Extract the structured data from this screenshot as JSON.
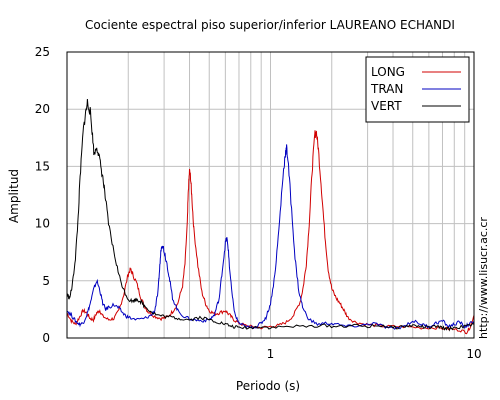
{
  "chart_data": {
    "type": "line",
    "title": "Cociente espectral piso superior/inferior LAUREANO ECHANDI",
    "xlabel": "Periodo (s)",
    "ylabel": "Amplitud",
    "x_scale": "log",
    "xlim": [
      0.1,
      10
    ],
    "ylim": [
      0,
      25
    ],
    "x_ticks": [
      {
        "value": 1,
        "label": "1"
      },
      {
        "value": 10,
        "label": "10"
      }
    ],
    "y_ticks": [
      0,
      5,
      10,
      15,
      20,
      25
    ],
    "grid": true,
    "legend_position": "top-right",
    "side_text": "http://www.lisucr.ac.cr",
    "series": [
      {
        "name": "LONG",
        "color": "#d00000",
        "points": [
          [
            0.1,
            2.2
          ],
          [
            0.105,
            1.5
          ],
          [
            0.11,
            1.2
          ],
          [
            0.115,
            1.8
          ],
          [
            0.12,
            2.4
          ],
          [
            0.125,
            2.2
          ],
          [
            0.13,
            1.7
          ],
          [
            0.135,
            1.6
          ],
          [
            0.14,
            2.2
          ],
          [
            0.145,
            2.4
          ],
          [
            0.15,
            1.9
          ],
          [
            0.16,
            1.6
          ],
          [
            0.17,
            1.7
          ],
          [
            0.18,
            2.4
          ],
          [
            0.19,
            3.8
          ],
          [
            0.2,
            5.6
          ],
          [
            0.205,
            6.0
          ],
          [
            0.21,
            5.6
          ],
          [
            0.22,
            4.8
          ],
          [
            0.23,
            3.6
          ],
          [
            0.24,
            2.8
          ],
          [
            0.25,
            2.3
          ],
          [
            0.27,
            1.9
          ],
          [
            0.29,
            1.7
          ],
          [
            0.31,
            1.8
          ],
          [
            0.33,
            2.3
          ],
          [
            0.35,
            3.0
          ],
          [
            0.37,
            4.6
          ],
          [
            0.38,
            6.5
          ],
          [
            0.39,
            10.0
          ],
          [
            0.395,
            13.0
          ],
          [
            0.4,
            14.6
          ],
          [
            0.405,
            14.0
          ],
          [
            0.41,
            12.5
          ],
          [
            0.42,
            9.5
          ],
          [
            0.44,
            6.3
          ],
          [
            0.46,
            4.0
          ],
          [
            0.48,
            3.0
          ],
          [
            0.5,
            2.4
          ],
          [
            0.53,
            2.1
          ],
          [
            0.56,
            2.2
          ],
          [
            0.6,
            2.4
          ],
          [
            0.63,
            2.0
          ],
          [
            0.66,
            1.6
          ],
          [
            0.7,
            1.3
          ],
          [
            0.75,
            1.1
          ],
          [
            0.8,
            1.0
          ],
          [
            0.9,
            0.9
          ],
          [
            1.0,
            1.0
          ],
          [
            1.1,
            1.1
          ],
          [
            1.2,
            1.4
          ],
          [
            1.3,
            2.0
          ],
          [
            1.4,
            3.2
          ],
          [
            1.45,
            4.5
          ],
          [
            1.5,
            6.5
          ],
          [
            1.55,
            10.0
          ],
          [
            1.6,
            14.5
          ],
          [
            1.65,
            17.8
          ],
          [
            1.68,
            18.0
          ],
          [
            1.72,
            16.5
          ],
          [
            1.78,
            13.0
          ],
          [
            1.85,
            9.0
          ],
          [
            1.92,
            6.0
          ],
          [
            2.0,
            4.3
          ],
          [
            2.1,
            3.5
          ],
          [
            2.2,
            3.0
          ],
          [
            2.3,
            2.4
          ],
          [
            2.4,
            1.8
          ],
          [
            2.6,
            1.4
          ],
          [
            2.9,
            1.2
          ],
          [
            3.3,
            1.1
          ],
          [
            3.8,
            1.0
          ],
          [
            4.5,
            1.0
          ],
          [
            5.5,
            0.9
          ],
          [
            6.5,
            0.9
          ],
          [
            7.5,
            0.8
          ],
          [
            8.5,
            0.7
          ],
          [
            9.2,
            0.5
          ],
          [
            9.6,
            1.0
          ],
          [
            10,
            2.0
          ]
        ]
      },
      {
        "name": "TRAN",
        "color": "#0000c0",
        "points": [
          [
            0.1,
            2.4
          ],
          [
            0.105,
            2.0
          ],
          [
            0.11,
            1.5
          ],
          [
            0.115,
            1.2
          ],
          [
            0.12,
            1.3
          ],
          [
            0.125,
            2.0
          ],
          [
            0.13,
            3.0
          ],
          [
            0.135,
            4.2
          ],
          [
            0.14,
            5.0
          ],
          [
            0.145,
            4.2
          ],
          [
            0.15,
            3.0
          ],
          [
            0.155,
            2.5
          ],
          [
            0.16,
            2.7
          ],
          [
            0.17,
            2.9
          ],
          [
            0.18,
            2.6
          ],
          [
            0.19,
            2.1
          ],
          [
            0.2,
            1.8
          ],
          [
            0.22,
            1.6
          ],
          [
            0.24,
            1.7
          ],
          [
            0.26,
            2.0
          ],
          [
            0.27,
            2.4
          ],
          [
            0.28,
            4.0
          ],
          [
            0.285,
            6.0
          ],
          [
            0.29,
            7.8
          ],
          [
            0.295,
            8.2
          ],
          [
            0.3,
            7.6
          ],
          [
            0.31,
            6.5
          ],
          [
            0.32,
            5.0
          ],
          [
            0.33,
            3.5
          ],
          [
            0.35,
            2.4
          ],
          [
            0.38,
            1.8
          ],
          [
            0.42,
            1.6
          ],
          [
            0.46,
            1.5
          ],
          [
            0.5,
            1.6
          ],
          [
            0.53,
            2.0
          ],
          [
            0.56,
            3.5
          ],
          [
            0.58,
            6.0
          ],
          [
            0.6,
            8.3
          ],
          [
            0.61,
            8.7
          ],
          [
            0.62,
            7.8
          ],
          [
            0.63,
            6.0
          ],
          [
            0.65,
            3.5
          ],
          [
            0.67,
            2.0
          ],
          [
            0.7,
            1.3
          ],
          [
            0.75,
            1.0
          ],
          [
            0.8,
            0.9
          ],
          [
            0.85,
            1.0
          ],
          [
            0.9,
            1.3
          ],
          [
            0.95,
            1.8
          ],
          [
            1.0,
            3.0
          ],
          [
            1.05,
            5.5
          ],
          [
            1.1,
            9.5
          ],
          [
            1.15,
            14.0
          ],
          [
            1.18,
            16.0
          ],
          [
            1.2,
            16.6
          ],
          [
            1.22,
            15.5
          ],
          [
            1.26,
            12.0
          ],
          [
            1.32,
            7.0
          ],
          [
            1.38,
            4.0
          ],
          [
            1.45,
            2.5
          ],
          [
            1.55,
            1.6
          ],
          [
            1.7,
            1.2
          ],
          [
            1.9,
            1.3
          ],
          [
            2.1,
            1.2
          ],
          [
            2.4,
            1.0
          ],
          [
            2.8,
            1.1
          ],
          [
            3.2,
            1.3
          ],
          [
            3.6,
            1.0
          ],
          [
            4.0,
            0.8
          ],
          [
            4.5,
            1.0
          ],
          [
            5.0,
            1.5
          ],
          [
            5.5,
            1.2
          ],
          [
            6.0,
            1.0
          ],
          [
            6.5,
            1.3
          ],
          [
            7.0,
            1.5
          ],
          [
            7.5,
            1.0
          ],
          [
            8.0,
            1.2
          ],
          [
            8.5,
            1.4
          ],
          [
            9.0,
            1.0
          ],
          [
            9.5,
            1.2
          ],
          [
            10,
            1.5
          ]
        ]
      },
      {
        "name": "VERT",
        "color": "#000000",
        "points": [
          [
            0.1,
            3.8
          ],
          [
            0.103,
            3.5
          ],
          [
            0.106,
            4.5
          ],
          [
            0.11,
            7.0
          ],
          [
            0.113,
            10.0
          ],
          [
            0.116,
            14.0
          ],
          [
            0.12,
            18.0
          ],
          [
            0.123,
            19.5
          ],
          [
            0.126,
            20.6
          ],
          [
            0.13,
            19.8
          ],
          [
            0.133,
            18.0
          ],
          [
            0.136,
            16.0
          ],
          [
            0.14,
            16.8
          ],
          [
            0.145,
            15.5
          ],
          [
            0.15,
            14.0
          ],
          [
            0.155,
            12.0
          ],
          [
            0.16,
            10.0
          ],
          [
            0.17,
            7.5
          ],
          [
            0.18,
            5.5
          ],
          [
            0.19,
            4.2
          ],
          [
            0.2,
            3.4
          ],
          [
            0.21,
            3.2
          ],
          [
            0.22,
            3.4
          ],
          [
            0.23,
            3.2
          ],
          [
            0.24,
            2.8
          ],
          [
            0.26,
            2.3
          ],
          [
            0.28,
            2.0
          ],
          [
            0.3,
            1.9
          ],
          [
            0.33,
            1.8
          ],
          [
            0.36,
            1.7
          ],
          [
            0.4,
            1.6
          ],
          [
            0.45,
            1.8
          ],
          [
            0.5,
            1.6
          ],
          [
            0.55,
            1.4
          ],
          [
            0.6,
            1.2
          ],
          [
            0.65,
            1.0
          ],
          [
            0.7,
            0.9
          ],
          [
            0.8,
            0.9
          ],
          [
            0.9,
            1.0
          ],
          [
            1.0,
            0.9
          ],
          [
            1.2,
            1.0
          ],
          [
            1.5,
            1.0
          ],
          [
            1.8,
            1.1
          ],
          [
            2.1,
            1.0
          ],
          [
            2.5,
            1.1
          ],
          [
            3.0,
            1.0
          ],
          [
            3.5,
            1.1
          ],
          [
            4.0,
            0.9
          ],
          [
            4.5,
            1.0
          ],
          [
            5.0,
            1.1
          ],
          [
            5.5,
            1.0
          ],
          [
            6.0,
            0.9
          ],
          [
            6.5,
            1.0
          ],
          [
            7.0,
            0.9
          ],
          [
            7.5,
            0.8
          ],
          [
            8.0,
            0.9
          ],
          [
            9.0,
            1.0
          ],
          [
            10,
            1.2
          ]
        ]
      }
    ]
  }
}
